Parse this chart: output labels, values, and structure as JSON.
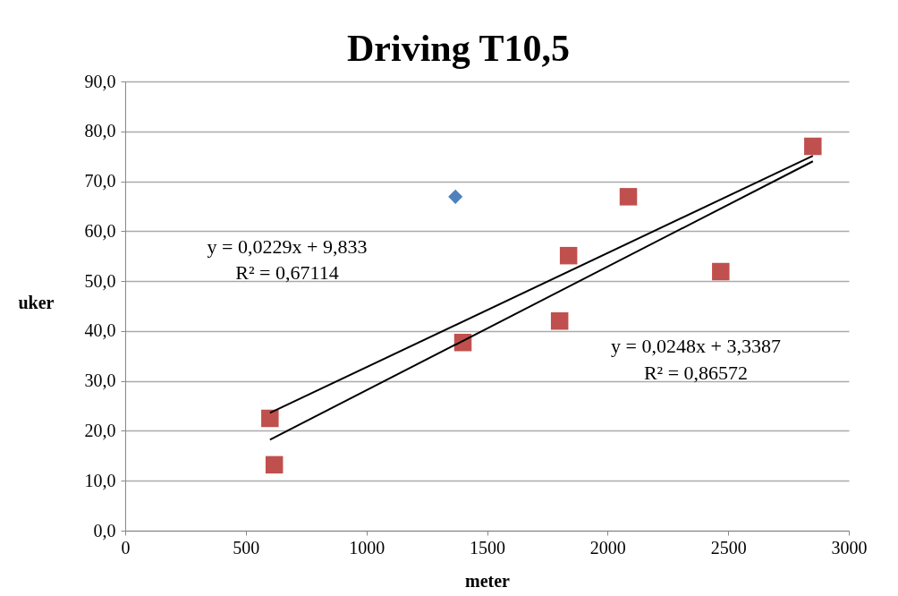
{
  "chart_data": {
    "type": "scatter",
    "title": "Driving T10,5",
    "xlabel": "meter",
    "ylabel": "uker",
    "xlim": [
      0,
      3000
    ],
    "xticks": [
      0,
      500,
      1000,
      1500,
      2000,
      2500,
      3000
    ],
    "ylim": [
      0,
      90
    ],
    "yticks": [
      {
        "value": 0,
        "label": "0,0"
      },
      {
        "value": 10,
        "label": "10,0"
      },
      {
        "value": 20,
        "label": "20,0"
      },
      {
        "value": 30,
        "label": "30,0"
      },
      {
        "value": 40,
        "label": "40,0"
      },
      {
        "value": 50,
        "label": "50,0"
      },
      {
        "value": 60,
        "label": "60,0"
      },
      {
        "value": 70,
        "label": "70,0"
      },
      {
        "value": 80,
        "label": "80,0"
      },
      {
        "value": 90,
        "label": "90,0"
      }
    ],
    "grid": "y",
    "legend": false,
    "series": [
      {
        "marker": "diamond",
        "color": "#4f81bd",
        "x": [
          1369
        ],
        "values": [
          66.9
        ]
      },
      {
        "marker": "square",
        "color": "#c0504d",
        "x": [
          600,
          618,
          1400,
          1838,
          1801,
          2086,
          2469,
          2851
        ],
        "values": [
          22.5,
          13.2,
          37.7,
          55.1,
          42.0,
          66.9,
          51.9,
          77.0
        ]
      },
      {
        "type": "line",
        "color": "#000000",
        "x": [
          600,
          2851
        ],
        "values": [
          23.6,
          75.1
        ]
      },
      {
        "type": "line",
        "color": "#000000",
        "x": [
          600,
          2851
        ],
        "values": [
          18.2,
          74.0
        ]
      }
    ],
    "annotations": [
      "y = 0,0229x + 9,833",
      "R² = 0,67114",
      "y = 0,0248x + 3,3387",
      "R² = 0,86572"
    ]
  }
}
